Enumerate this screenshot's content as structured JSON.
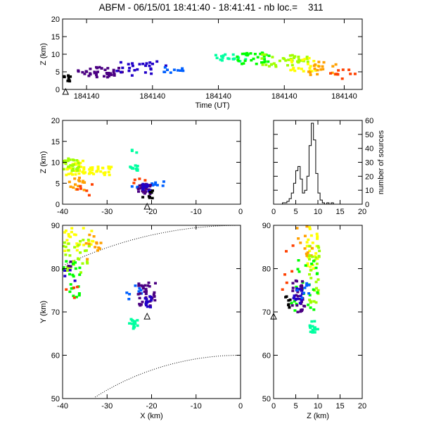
{
  "title": "ABFM - 06/15/01 18:41:40 - 18:41:41 - nb loc.=    311",
  "colors": {
    "axis": "#000000",
    "background": "#ffffff",
    "altitude_scale": [
      "#000000",
      "#4b0082",
      "#2000c8",
      "#0060ff",
      "#00d0ff",
      "#00ffa0",
      "#00ff00",
      "#a0ff00",
      "#ffff00",
      "#ffa000",
      "#ff4000",
      "#ff0000"
    ]
  },
  "chart_data": [
    {
      "id": "time-height",
      "type": "scatter",
      "title": "",
      "xlabel": "Time (UT)",
      "ylabel": "Z (km)",
      "xlim": [
        0,
        1
      ],
      "ylim": [
        0,
        20
      ],
      "xticklabels": [
        "184140",
        "184140",
        "184140",
        "184140",
        "184140"
      ],
      "xtick_positions": [
        0.08,
        0.3,
        0.52,
        0.74,
        0.94
      ],
      "yticks": [
        0,
        5,
        10,
        15,
        20
      ],
      "marker_triangle": {
        "x": 0.01,
        "y": 0
      },
      "clusters": [
        {
          "x": [
            0.0,
            0.03
          ],
          "y": [
            2,
            4
          ],
          "color": "#000000",
          "n": 10
        },
        {
          "x": [
            0.05,
            0.2
          ],
          "y": [
            3.5,
            6.5
          ],
          "color": "#4b0082",
          "n": 40
        },
        {
          "x": [
            0.18,
            0.35
          ],
          "y": [
            4,
            8
          ],
          "color": "#2000c8",
          "n": 25
        },
        {
          "x": [
            0.33,
            0.42
          ],
          "y": [
            4.8,
            6.5
          ],
          "color": "#0060ff",
          "n": 10
        },
        {
          "x": [
            0.5,
            0.62
          ],
          "y": [
            8,
            10
          ],
          "color": "#00ffa0",
          "n": 20
        },
        {
          "x": [
            0.58,
            0.7
          ],
          "y": [
            7,
            10.5
          ],
          "color": "#00ff00",
          "n": 30
        },
        {
          "x": [
            0.66,
            0.82
          ],
          "y": [
            6.5,
            10
          ],
          "color": "#a0ff00",
          "n": 35
        },
        {
          "x": [
            0.76,
            0.86
          ],
          "y": [
            5,
            9
          ],
          "color": "#ffff00",
          "n": 20
        },
        {
          "x": [
            0.82,
            0.92
          ],
          "y": [
            4,
            8
          ],
          "color": "#ffa000",
          "n": 18
        },
        {
          "x": [
            0.88,
            0.98
          ],
          "y": [
            3,
            6
          ],
          "color": "#ff4000",
          "n": 10
        }
      ]
    },
    {
      "id": "x-height",
      "type": "scatter",
      "title": "",
      "xlabel": "",
      "ylabel": "Z (km)",
      "xlim": [
        -40,
        0
      ],
      "ylim": [
        0,
        20
      ],
      "xticks": [
        -40,
        -30,
        -20,
        -10,
        0
      ],
      "yticks": [
        0,
        5,
        10,
        15,
        20
      ],
      "marker_triangle": {
        "x": -21,
        "y": 0
      },
      "clusters": [
        {
          "x": [
            -40,
            -35
          ],
          "y": [
            7,
            10.5
          ],
          "color": "#ffff00",
          "n": 30
        },
        {
          "x": [
            -40,
            -36
          ],
          "y": [
            8,
            11
          ],
          "color": "#a0ff00",
          "n": 25
        },
        {
          "x": [
            -35,
            -29
          ],
          "y": [
            7,
            9
          ],
          "color": "#ffff00",
          "n": 25
        },
        {
          "x": [
            -39,
            -35
          ],
          "y": [
            3,
            6.5
          ],
          "color": "#ffa000",
          "n": 15
        },
        {
          "x": [
            -37,
            -33
          ],
          "y": [
            2,
            5
          ],
          "color": "#ff4000",
          "n": 6
        },
        {
          "x": [
            -25,
            -23
          ],
          "y": [
            8,
            9.5
          ],
          "color": "#00ffa0",
          "n": 12
        },
        {
          "x": [
            -26,
            -23
          ],
          "y": [
            12,
            13
          ],
          "color": "#00ffa0",
          "n": 3
        },
        {
          "x": [
            -25,
            -17
          ],
          "y": [
            4,
            6
          ],
          "color": "#0060ff",
          "n": 10
        },
        {
          "x": [
            -23,
            -20
          ],
          "y": [
            2.5,
            5
          ],
          "color": "#4b0082",
          "n": 25
        },
        {
          "x": [
            -22,
            -20
          ],
          "y": [
            3,
            5
          ],
          "color": "#2000c8",
          "n": 15
        },
        {
          "x": [
            -22,
            -19
          ],
          "y": [
            1.5,
            3.5
          ],
          "color": "#000000",
          "n": 8
        },
        {
          "x": [
            -24,
            -21
          ],
          "y": [
            5,
            6.5
          ],
          "color": "#ff4000",
          "n": 4
        }
      ]
    },
    {
      "id": "height-histogram",
      "type": "bar",
      "title": "",
      "xlabel": "",
      "ylabel": "number of sources",
      "xlim": [
        0,
        20
      ],
      "ylim": [
        0,
        60
      ],
      "xticks": [
        0,
        5,
        10,
        15,
        20
      ],
      "yticks": [
        0,
        10,
        20,
        30,
        40,
        50,
        60
      ],
      "bin_edges_start": 2,
      "bin_width": 0.5,
      "values": [
        1,
        1,
        2,
        4,
        8,
        15,
        24,
        27,
        18,
        8,
        10,
        20,
        42,
        58,
        46,
        22,
        8,
        3,
        1,
        0,
        1,
        0,
        1,
        0,
        0,
        0,
        0,
        0
      ]
    },
    {
      "id": "plan-view",
      "type": "scatter",
      "title": "",
      "xlabel": "X (km)",
      "ylabel": "Y (km)",
      "xlim": [
        -40,
        0
      ],
      "ylim": [
        50,
        90
      ],
      "xticks": [
        -40,
        -30,
        -20,
        -10,
        0
      ],
      "yticks": [
        50,
        60,
        70,
        80,
        90
      ],
      "marker_triangle": {
        "x": -21,
        "y": 69.5
      },
      "range_rings_km": [
        60,
        90
      ],
      "ring_center": [
        0,
        0
      ],
      "clusters": [
        {
          "x": [
            -40,
            -33
          ],
          "y": [
            84,
            90
          ],
          "color": "#ffff00",
          "n": 25
        },
        {
          "x": [
            -40,
            -34
          ],
          "y": [
            79,
            87
          ],
          "color": "#a0ff00",
          "n": 30
        },
        {
          "x": [
            -40,
            -36
          ],
          "y": [
            73,
            82
          ],
          "color": "#00ff00",
          "n": 20
        },
        {
          "x": [
            -35,
            -30
          ],
          "y": [
            82,
            88
          ],
          "color": "#ffa000",
          "n": 12
        },
        {
          "x": [
            -40,
            -36
          ],
          "y": [
            73,
            79
          ],
          "color": "#ff4000",
          "n": 5
        },
        {
          "x": [
            -25,
            -23
          ],
          "y": [
            66,
            68.5
          ],
          "color": "#00ffa0",
          "n": 15
        },
        {
          "x": [
            -26,
            -22
          ],
          "y": [
            73,
            77
          ],
          "color": "#0060ff",
          "n": 8
        },
        {
          "x": [
            -23,
            -19
          ],
          "y": [
            71,
            77
          ],
          "color": "#4b0082",
          "n": 35
        },
        {
          "x": [
            -22,
            -20
          ],
          "y": [
            71,
            74
          ],
          "color": "#2000c8",
          "n": 12
        },
        {
          "x": [
            -40,
            -37
          ],
          "y": [
            77,
            80
          ],
          "color": "#2000c8",
          "n": 4
        },
        {
          "x": [
            -40,
            -38
          ],
          "y": [
            80,
            82
          ],
          "color": "#4b0082",
          "n": 3
        }
      ]
    },
    {
      "id": "height-y",
      "type": "scatter",
      "title": "",
      "xlabel": "Z (km)",
      "ylabel": "",
      "xlim": [
        0,
        20
      ],
      "ylim": [
        50,
        90
      ],
      "xticks": [
        0,
        5,
        10,
        15,
        20
      ],
      "yticks": [
        50,
        60,
        70,
        80,
        90
      ],
      "marker_triangle": {
        "x": 0,
        "y": 69.5
      },
      "clusters": [
        {
          "x": [
            7.5,
            10
          ],
          "y": [
            80,
            90
          ],
          "color": "#ffff00",
          "n": 25
        },
        {
          "x": [
            5,
            9
          ],
          "y": [
            83,
            90
          ],
          "color": "#ffa000",
          "n": 12
        },
        {
          "x": [
            8,
            10.5
          ],
          "y": [
            72,
            86
          ],
          "color": "#a0ff00",
          "n": 30
        },
        {
          "x": [
            4,
            10
          ],
          "y": [
            70,
            82
          ],
          "color": "#00ff00",
          "n": 25
        },
        {
          "x": [
            8,
            10
          ],
          "y": [
            65,
            68
          ],
          "color": "#00ffa0",
          "n": 15
        },
        {
          "x": [
            4,
            7
          ],
          "y": [
            70,
            78
          ],
          "color": "#4b0082",
          "n": 30
        },
        {
          "x": [
            4.5,
            6.5
          ],
          "y": [
            72,
            76
          ],
          "color": "#2000c8",
          "n": 15
        },
        {
          "x": [
            5,
            8
          ],
          "y": [
            73,
            77
          ],
          "color": "#0060ff",
          "n": 8
        },
        {
          "x": [
            2,
            4.5
          ],
          "y": [
            70,
            74
          ],
          "color": "#000000",
          "n": 8
        },
        {
          "x": [
            2,
            5
          ],
          "y": [
            75,
            88
          ],
          "color": "#ff4000",
          "n": 6
        }
      ]
    }
  ]
}
